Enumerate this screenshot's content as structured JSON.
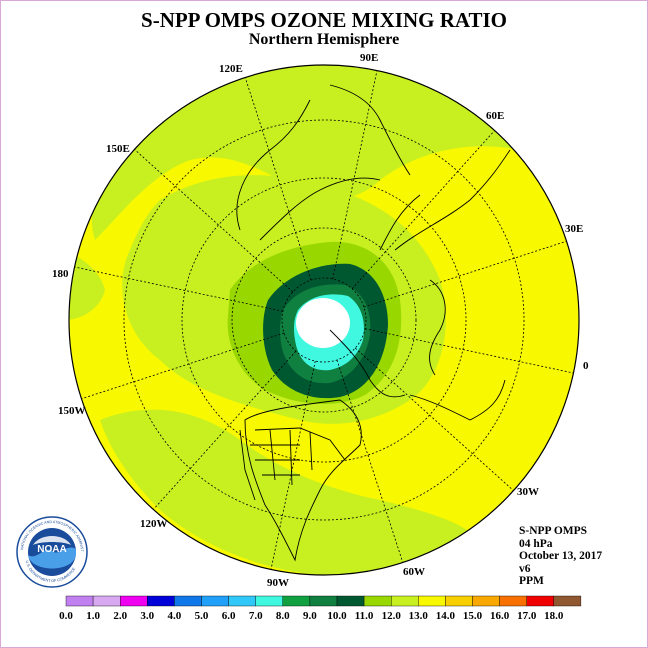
{
  "title": "S-NPP OMPS OZONE MIXING RATIO",
  "subtitle": "Northern Hemisphere",
  "longitude_labels": [
    {
      "id": "lon-90e",
      "text": "90E"
    },
    {
      "id": "lon-60e",
      "text": "60E"
    },
    {
      "id": "lon-30e",
      "text": "30E"
    },
    {
      "id": "lon-0",
      "text": "0"
    },
    {
      "id": "lon-30w",
      "text": "30W"
    },
    {
      "id": "lon-60w",
      "text": "60W"
    },
    {
      "id": "lon-90w",
      "text": "90W"
    },
    {
      "id": "lon-120w",
      "text": "120W"
    },
    {
      "id": "lon-150w",
      "text": "150W"
    },
    {
      "id": "lon-180",
      "text": "180"
    },
    {
      "id": "lon-150e",
      "text": "150E"
    },
    {
      "id": "lon-120e",
      "text": "120E"
    }
  ],
  "info": {
    "instrument": "S-NPP OMPS",
    "pressure": "04 hPa",
    "date": "October 13, 2017",
    "version": "v6",
    "units": "PPM"
  },
  "logo": {
    "text": "NOAA",
    "ring_text": "NATIONAL OCEANIC AND ATMOSPHERIC ADMINISTRATION",
    "bottom_text": "U.S. DEPARTMENT OF COMMERCE"
  },
  "colorbar": {
    "labels": [
      "0.0",
      "1.0",
      "2.0",
      "3.0",
      "4.0",
      "5.0",
      "6.0",
      "7.0",
      "8.0",
      "9.0",
      "10.0",
      "11.0",
      "12.0",
      "13.0",
      "14.0",
      "15.0",
      "16.0",
      "17.0",
      "18.0"
    ],
    "colors": [
      "#c080f0",
      "#d8a8f0",
      "#f000f0",
      "#0000d8",
      "#1078e8",
      "#20a0f8",
      "#30c8f8",
      "#40f8e0",
      "#10a040",
      "#108040",
      "#005830",
      "#98d800",
      "#c8f020",
      "#f8f800",
      "#f8d000",
      "#f8a800",
      "#f87000",
      "#f00000",
      "#905830"
    ]
  },
  "map_colors": {
    "ocean_background": "#f8f800",
    "band_12": "#c8f020",
    "band_11": "#98d800",
    "band_10": "#005830",
    "band_9": "#108040",
    "band_8": "#40f8e0",
    "polar_missing": "#ffffff"
  }
}
